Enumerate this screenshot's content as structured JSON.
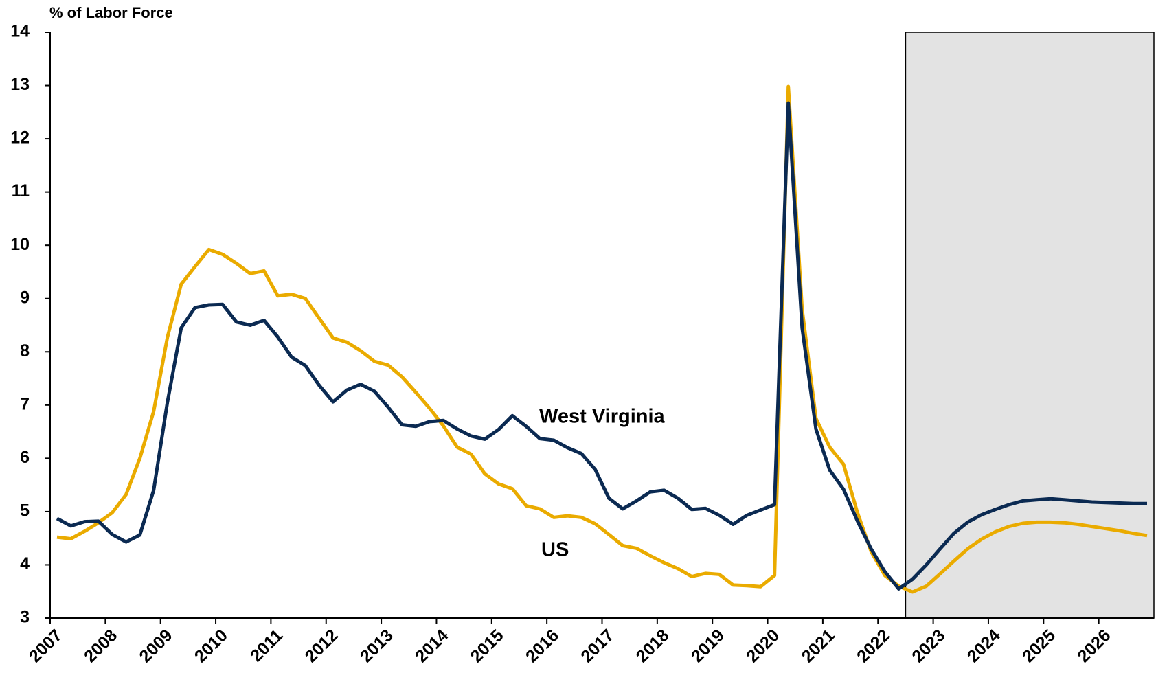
{
  "chart_data": {
    "type": "line",
    "y_axis_title": "% of Labor Force",
    "xlim": [
      2007,
      2027
    ],
    "xticks": [
      2007,
      2008,
      2009,
      2010,
      2011,
      2012,
      2013,
      2014,
      2015,
      2016,
      2017,
      2018,
      2019,
      2020,
      2021,
      2022,
      2023,
      2024,
      2025,
      2026
    ],
    "ylim": [
      3,
      14
    ],
    "yticks": [
      3,
      4,
      5,
      6,
      7,
      8,
      9,
      10,
      11,
      12,
      13,
      14
    ],
    "grid": false,
    "shaded_region": {
      "xlim": [
        2022.5,
        2027
      ],
      "color": "#e3e3e3"
    },
    "x": [
      2007.125,
      2007.375,
      2007.625,
      2007.875,
      2008.125,
      2008.375,
      2008.625,
      2008.875,
      2009.125,
      2009.375,
      2009.625,
      2009.875,
      2010.125,
      2010.375,
      2010.625,
      2010.875,
      2011.125,
      2011.375,
      2011.625,
      2011.875,
      2012.125,
      2012.375,
      2012.625,
      2012.875,
      2013.125,
      2013.375,
      2013.625,
      2013.875,
      2014.125,
      2014.375,
      2014.625,
      2014.875,
      2015.125,
      2015.375,
      2015.625,
      2015.875,
      2016.125,
      2016.375,
      2016.625,
      2016.875,
      2017.125,
      2017.375,
      2017.625,
      2017.875,
      2018.125,
      2018.375,
      2018.625,
      2018.875,
      2019.125,
      2019.375,
      2019.625,
      2019.875,
      2020.125,
      2020.375,
      2020.625,
      2020.875,
      2021.125,
      2021.375,
      2021.625,
      2021.875,
      2022.125,
      2022.375,
      2022.625,
      2022.875,
      2023.125,
      2023.375,
      2023.625,
      2023.875,
      2024.125,
      2024.375,
      2024.625,
      2024.875,
      2025.125,
      2025.375,
      2025.625,
      2025.875,
      2026.125,
      2026.375,
      2026.625,
      2026.875
    ],
    "series": [
      {
        "name": "West Virginia",
        "color": "#0b2a52",
        "values": [
          4.87,
          4.73,
          4.81,
          4.82,
          4.57,
          4.43,
          4.56,
          5.4,
          7.05,
          8.45,
          8.83,
          8.88,
          8.89,
          8.56,
          8.5,
          8.59,
          8.28,
          7.9,
          7.74,
          7.37,
          7.06,
          7.28,
          7.39,
          7.26,
          6.96,
          6.63,
          6.6,
          6.69,
          6.71,
          6.55,
          6.42,
          6.36,
          6.54,
          6.8,
          6.6,
          6.37,
          6.34,
          6.2,
          6.09,
          5.79,
          5.25,
          5.05,
          5.2,
          5.37,
          5.4,
          5.25,
          5.04,
          5.06,
          4.93,
          4.76,
          4.93,
          5.03,
          5.13,
          12.67,
          8.45,
          6.55,
          5.78,
          5.42,
          4.83,
          4.3,
          3.87,
          3.55,
          3.73,
          4.0,
          4.3,
          4.59,
          4.8,
          4.94,
          5.04,
          5.13,
          5.2,
          5.22,
          5.24,
          5.22,
          5.2,
          5.18,
          5.17,
          5.16,
          5.15,
          5.15
        ]
      },
      {
        "name": "US",
        "color": "#eaab00",
        "values": [
          4.52,
          4.49,
          4.63,
          4.79,
          4.98,
          5.32,
          6.0,
          6.88,
          8.27,
          9.27,
          9.6,
          9.92,
          9.83,
          9.66,
          9.47,
          9.52,
          9.05,
          9.08,
          9.0,
          8.63,
          8.26,
          8.18,
          8.02,
          7.82,
          7.75,
          7.53,
          7.24,
          6.94,
          6.61,
          6.21,
          6.08,
          5.71,
          5.52,
          5.43,
          5.11,
          5.05,
          4.89,
          4.92,
          4.89,
          4.77,
          4.57,
          4.36,
          4.31,
          4.17,
          4.04,
          3.93,
          3.78,
          3.84,
          3.82,
          3.62,
          3.61,
          3.59,
          3.8,
          12.98,
          8.8,
          6.75,
          6.21,
          5.89,
          4.99,
          4.25,
          3.8,
          3.6,
          3.49,
          3.6,
          3.83,
          4.07,
          4.3,
          4.48,
          4.62,
          4.72,
          4.78,
          4.8,
          4.8,
          4.79,
          4.76,
          4.72,
          4.68,
          4.64,
          4.59,
          4.55
        ]
      }
    ]
  }
}
